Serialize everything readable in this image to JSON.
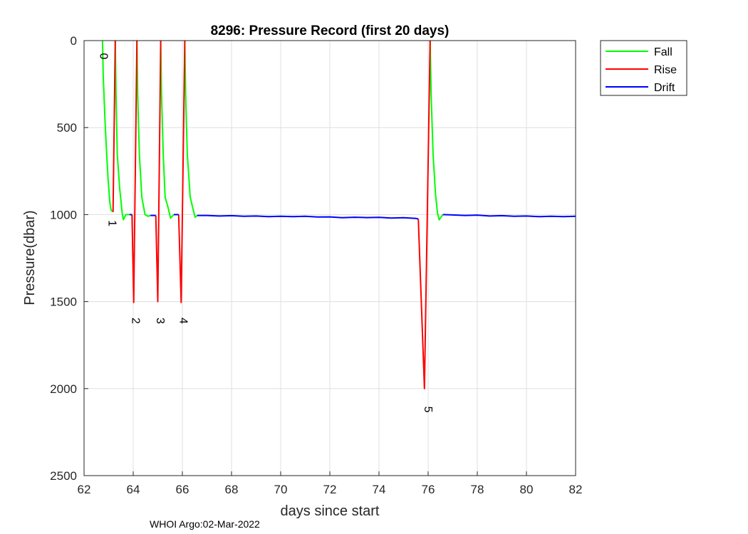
{
  "chart_data": {
    "type": "line",
    "title": "8296: Pressure Record (first 20 days)",
    "xlabel": "days since start",
    "ylabel": "Pressure(dbar)",
    "xlim": [
      62,
      82
    ],
    "ylim": [
      0,
      2500
    ],
    "y_reversed": true,
    "grid": true,
    "legend_position": "outside-top-right",
    "x_ticks": [
      "62",
      "64",
      "66",
      "68",
      "70",
      "72",
      "74",
      "76",
      "78",
      "80",
      "82"
    ],
    "y_ticks": [
      "0",
      "500",
      "1000",
      "1500",
      "2000",
      "2500"
    ],
    "series": [
      {
        "name": "Fall",
        "color": "#00ff00",
        "segments": [
          [
            [
              62.75,
              0
            ],
            [
              62.78,
              200
            ],
            [
              62.85,
              450
            ],
            [
              62.92,
              650
            ],
            [
              62.98,
              800
            ],
            [
              63.05,
              930
            ],
            [
              63.1,
              975
            ],
            [
              63.18,
              985
            ]
          ],
          [
            [
              63.27,
              0
            ],
            [
              63.3,
              300
            ],
            [
              63.35,
              650
            ],
            [
              63.45,
              850
            ],
            [
              63.55,
              990
            ],
            [
              63.6,
              1030
            ],
            [
              63.7,
              1000
            ],
            [
              63.85,
              1000
            ]
          ],
          [
            [
              64.15,
              0
            ],
            [
              64.18,
              300
            ],
            [
              64.25,
              650
            ],
            [
              64.35,
              900
            ],
            [
              64.48,
              1000
            ],
            [
              64.6,
              1010
            ],
            [
              64.7,
              1005
            ]
          ],
          [
            [
              65.12,
              0
            ],
            [
              65.15,
              300
            ],
            [
              65.22,
              650
            ],
            [
              65.3,
              900
            ],
            [
              65.42,
              960
            ],
            [
              65.52,
              1020
            ],
            [
              65.65,
              1000
            ]
          ],
          [
            [
              66.1,
              0
            ],
            [
              66.13,
              300
            ],
            [
              66.2,
              650
            ],
            [
              66.32,
              900
            ],
            [
              66.42,
              960
            ],
            [
              66.52,
              1015
            ],
            [
              66.6,
              1005
            ]
          ],
          [
            [
              76.08,
              0
            ],
            [
              76.12,
              300
            ],
            [
              76.2,
              650
            ],
            [
              76.3,
              880
            ],
            [
              76.38,
              990
            ],
            [
              76.45,
              1030
            ],
            [
              76.52,
              1015
            ],
            [
              76.6,
              1000
            ]
          ]
        ]
      },
      {
        "name": "Rise",
        "color": "#ff0000",
        "segments": [
          [
            [
              63.18,
              985
            ],
            [
              63.27,
              0
            ]
          ],
          [
            [
              63.95,
              1000
            ],
            [
              64.02,
              1505
            ],
            [
              64.15,
              0
            ]
          ],
          [
            [
              64.92,
              1005
            ],
            [
              65.0,
              1500
            ],
            [
              65.12,
              0
            ]
          ],
          [
            [
              65.85,
              1000
            ],
            [
              65.95,
              1505
            ],
            [
              66.1,
              0
            ]
          ],
          [
            [
              75.6,
              1025
            ],
            [
              75.85,
              2000
            ],
            [
              76.08,
              0
            ]
          ]
        ]
      },
      {
        "name": "Drift",
        "color": "#0000ff",
        "segments": [
          [
            [
              63.85,
              1000
            ],
            [
              63.95,
              1000
            ]
          ],
          [
            [
              64.7,
              1005
            ],
            [
              64.92,
              1005
            ]
          ],
          [
            [
              65.65,
              1000
            ],
            [
              65.85,
              1000
            ]
          ],
          [
            [
              66.6,
              1005
            ],
            [
              67,
              1005
            ],
            [
              67.5,
              1008
            ],
            [
              68,
              1006
            ],
            [
              68.5,
              1010
            ],
            [
              69,
              1008
            ],
            [
              69.5,
              1012
            ],
            [
              70,
              1010
            ],
            [
              70.5,
              1012
            ],
            [
              71,
              1010
            ],
            [
              71.5,
              1014
            ],
            [
              72,
              1013
            ],
            [
              72.5,
              1018
            ],
            [
              73,
              1015
            ],
            [
              73.5,
              1017
            ],
            [
              74,
              1016
            ],
            [
              74.5,
              1020
            ],
            [
              75,
              1018
            ],
            [
              75.5,
              1022
            ],
            [
              75.6,
              1025
            ]
          ],
          [
            [
              76.6,
              1000
            ],
            [
              77,
              1002
            ],
            [
              77.5,
              1005
            ],
            [
              78,
              1003
            ],
            [
              78.5,
              1008
            ],
            [
              79,
              1006
            ],
            [
              79.5,
              1010
            ],
            [
              80,
              1008
            ],
            [
              80.5,
              1012
            ],
            [
              81,
              1010
            ],
            [
              81.5,
              1012
            ],
            [
              82,
              1010
            ]
          ]
        ]
      }
    ],
    "annotations": [
      {
        "text": "0",
        "x": 62.65,
        "y": 90
      },
      {
        "text": "1",
        "x": 63.0,
        "y": 1050
      },
      {
        "text": "2",
        "x": 63.95,
        "y": 1610
      },
      {
        "text": "3",
        "x": 64.95,
        "y": 1610
      },
      {
        "text": "4",
        "x": 65.9,
        "y": 1610
      },
      {
        "text": "5",
        "x": 75.85,
        "y": 2120
      }
    ]
  },
  "footer": {
    "label": "WHOI Argo:02-Mar-2022"
  }
}
